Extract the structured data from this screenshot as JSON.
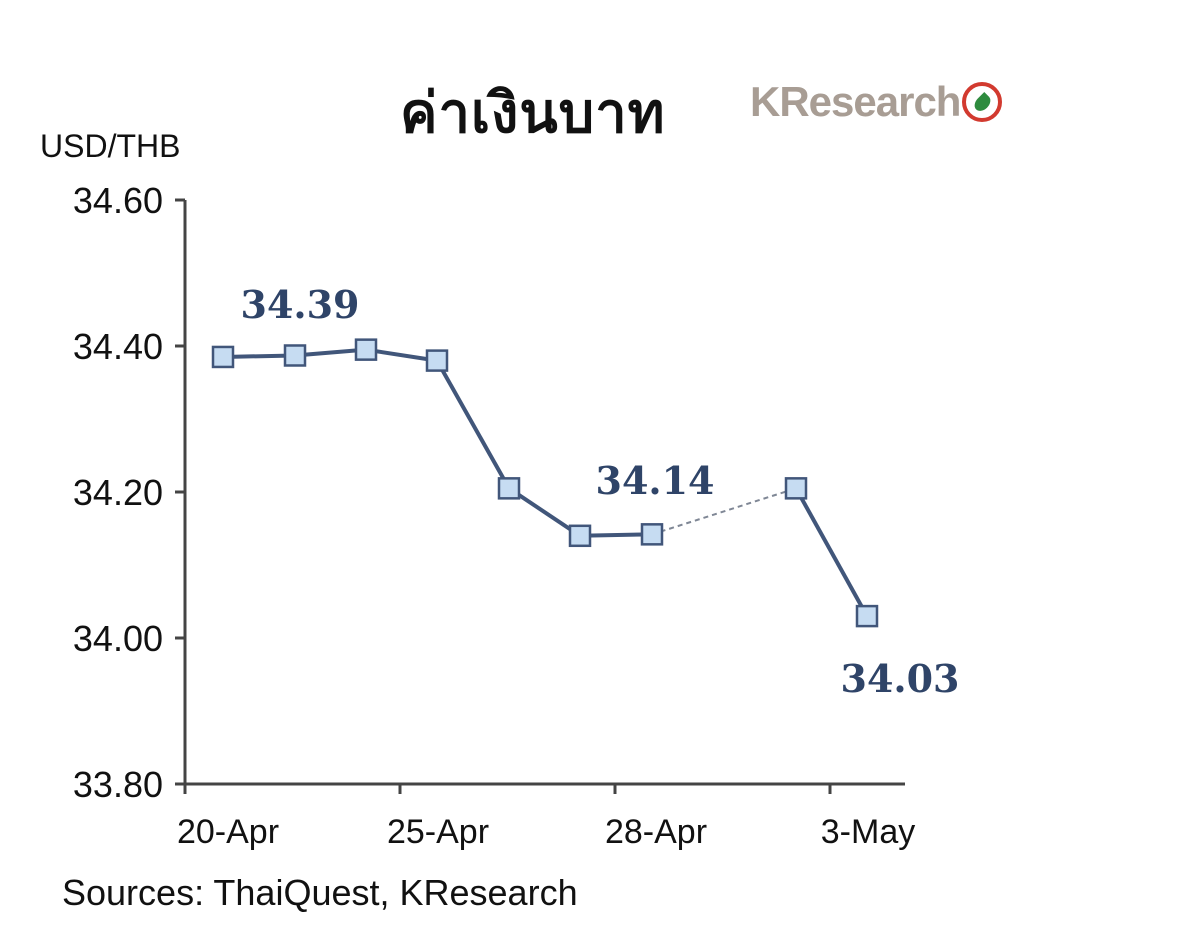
{
  "chart_data": {
    "type": "line",
    "title": "ค่าเงินบาท",
    "logo_text": "KResearch",
    "ylabel": "USD/THB",
    "source_note": "Sources: ThaiQuest, KResearch",
    "ylim": [
      33.8,
      34.6
    ],
    "yticks": [
      "34.60",
      "34.40",
      "34.20",
      "34.00",
      "33.80"
    ],
    "yticks_values": [
      34.6,
      34.4,
      34.2,
      34.0,
      33.8
    ],
    "xtick_labels": [
      "20-Apr",
      "25-Apr",
      "28-Apr",
      "3-May"
    ],
    "series": [
      {
        "values": [
          34.385,
          34.387,
          34.395,
          34.38,
          34.205,
          34.14,
          34.142,
          34.205,
          34.03
        ]
      }
    ],
    "data_labels": [
      {
        "point": 2,
        "text": "34.39"
      },
      {
        "point": 6,
        "text": "34.14"
      },
      {
        "point": 8,
        "text": "34.03"
      }
    ],
    "dashed_segment": [
      6,
      7
    ],
    "line_color": "#41567a",
    "marker_fill": "#c6dcf2",
    "label_color": "#2f4468"
  }
}
